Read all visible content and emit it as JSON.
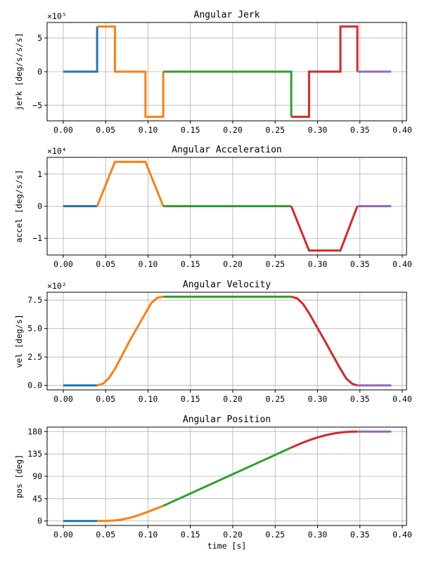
{
  "chart_data": [
    {
      "type": "line",
      "title": "Angular Jerk",
      "ylabel": "jerk [deg/s/s/s]",
      "xlabel": "",
      "offset_text": "×10⁵",
      "xlim": [
        -0.019,
        0.405
      ],
      "ylim": [
        -7.3,
        7.3
      ],
      "xticks": [
        0.0,
        0.05,
        0.1,
        0.15,
        0.2,
        0.25,
        0.3,
        0.35,
        0.4
      ],
      "xticklabels": [
        "0.00",
        "0.05",
        "0.10",
        "0.15",
        "0.20",
        "0.25",
        "0.30",
        "0.35",
        "0.40"
      ],
      "yticks": [
        -5,
        0,
        5
      ],
      "yticklabels": [
        "−5",
        "0",
        "5"
      ],
      "grid": true,
      "series": [
        {
          "color": "#1f77b4",
          "x": [
            0.0,
            0.04,
            0.04
          ],
          "y": [
            0,
            0,
            6.7
          ]
        },
        {
          "color": "#ff7f0e",
          "x": [
            0.04,
            0.061,
            0.061,
            0.097,
            0.097,
            0.118,
            0.118
          ],
          "y": [
            6.7,
            6.7,
            0,
            0,
            -6.7,
            -6.7,
            0
          ]
        },
        {
          "color": "#2ca02c",
          "x": [
            0.118,
            0.269,
            0.269
          ],
          "y": [
            0,
            0,
            -6.7
          ]
        },
        {
          "color": "#d62728",
          "x": [
            0.269,
            0.29,
            0.29,
            0.327,
            0.327,
            0.347,
            0.347
          ],
          "y": [
            -6.7,
            -6.7,
            0,
            0,
            6.7,
            6.7,
            0
          ]
        },
        {
          "color": "#9467bd",
          "x": [
            0.347,
            0.387
          ],
          "y": [
            0,
            0
          ]
        }
      ]
    },
    {
      "type": "line",
      "title": "Angular Acceleration",
      "ylabel": "accel [deg/s/s]",
      "xlabel": "",
      "offset_text": "×10⁴",
      "xlim": [
        -0.019,
        0.405
      ],
      "ylim": [
        -1.52,
        1.52
      ],
      "xticks": [
        0.0,
        0.05,
        0.1,
        0.15,
        0.2,
        0.25,
        0.3,
        0.35,
        0.4
      ],
      "xticklabels": [
        "0.00",
        "0.05",
        "0.10",
        "0.15",
        "0.20",
        "0.25",
        "0.30",
        "0.35",
        "0.40"
      ],
      "yticks": [
        -1,
        0,
        1
      ],
      "yticklabels": [
        "−1",
        "0",
        "1"
      ],
      "grid": true,
      "series": [
        {
          "color": "#1f77b4",
          "x": [
            0.0,
            0.04
          ],
          "y": [
            0,
            0
          ]
        },
        {
          "color": "#ff7f0e",
          "x": [
            0.04,
            0.061,
            0.097,
            0.118
          ],
          "y": [
            0,
            1.38,
            1.38,
            0
          ]
        },
        {
          "color": "#2ca02c",
          "x": [
            0.118,
            0.269
          ],
          "y": [
            0,
            0
          ]
        },
        {
          "color": "#d62728",
          "x": [
            0.269,
            0.29,
            0.327,
            0.347
          ],
          "y": [
            0,
            -1.38,
            -1.38,
            0
          ]
        },
        {
          "color": "#9467bd",
          "x": [
            0.347,
            0.387
          ],
          "y": [
            0,
            0
          ]
        }
      ]
    },
    {
      "type": "line",
      "title": "Angular Velocity",
      "ylabel": "vel [deg/s]",
      "xlabel": "",
      "offset_text": "×10²",
      "xlim": [
        -0.019,
        0.405
      ],
      "ylim": [
        -0.39,
        8.19
      ],
      "xticks": [
        0.0,
        0.05,
        0.1,
        0.15,
        0.2,
        0.25,
        0.3,
        0.35,
        0.4
      ],
      "xticklabels": [
        "0.00",
        "0.05",
        "0.10",
        "0.15",
        "0.20",
        "0.25",
        "0.30",
        "0.35",
        "0.40"
      ],
      "yticks": [
        0,
        2.5,
        5,
        7.5
      ],
      "yticklabels": [
        "0.0",
        "2.5",
        "5.0",
        "7.5"
      ],
      "grid": true,
      "series": [
        {
          "color": "#1f77b4",
          "x": [
            0.0,
            0.04
          ],
          "y": [
            0,
            0
          ]
        },
        {
          "color": "#ff7f0e",
          "x": [
            0.04,
            0.047,
            0.054,
            0.061,
            0.079,
            0.097,
            0.104,
            0.111,
            0.118
          ],
          "y": [
            0,
            0.16,
            0.65,
            1.45,
            4.0,
            6.35,
            7.25,
            7.7,
            7.8
          ]
        },
        {
          "color": "#2ca02c",
          "x": [
            0.118,
            0.269
          ],
          "y": [
            7.8,
            7.8
          ]
        },
        {
          "color": "#d62728",
          "x": [
            0.269,
            0.276,
            0.283,
            0.29,
            0.308,
            0.327,
            0.334,
            0.341,
            0.347
          ],
          "y": [
            7.8,
            7.65,
            7.15,
            6.35,
            4.0,
            1.45,
            0.6,
            0.15,
            0
          ]
        },
        {
          "color": "#9467bd",
          "x": [
            0.347,
            0.387
          ],
          "y": [
            0,
            0
          ]
        }
      ]
    },
    {
      "type": "line",
      "title": "Angular Position",
      "ylabel": "pos [deg]",
      "xlabel": "time [s]",
      "offset_text": "",
      "xlim": [
        -0.019,
        0.405
      ],
      "ylim": [
        -9,
        189
      ],
      "xticks": [
        0.0,
        0.05,
        0.1,
        0.15,
        0.2,
        0.25,
        0.3,
        0.35,
        0.4
      ],
      "xticklabels": [
        "0.00",
        "0.05",
        "0.10",
        "0.15",
        "0.20",
        "0.25",
        "0.30",
        "0.35",
        "0.40"
      ],
      "yticks": [
        0,
        45,
        90,
        135,
        180
      ],
      "yticklabels": [
        "0",
        "45",
        "90",
        "135",
        "180"
      ],
      "grid": true,
      "series": [
        {
          "color": "#1f77b4",
          "x": [
            0.0,
            0.04
          ],
          "y": [
            0,
            0
          ]
        },
        {
          "color": "#ff7f0e",
          "x": [
            0.04,
            0.05,
            0.06,
            0.07,
            0.08,
            0.09,
            0.1,
            0.11,
            0.118
          ],
          "y": [
            0,
            0.2,
            1.0,
            3.2,
            7.0,
            12.3,
            18.5,
            25.2,
            30.5
          ]
        },
        {
          "color": "#2ca02c",
          "x": [
            0.118,
            0.269
          ],
          "y": [
            30.5,
            147.8
          ]
        },
        {
          "color": "#d62728",
          "x": [
            0.269,
            0.28,
            0.29,
            0.3,
            0.31,
            0.32,
            0.33,
            0.34,
            0.347
          ],
          "y": [
            147.8,
            155.9,
            162.5,
            168.2,
            172.9,
            176.4,
            178.8,
            179.8,
            180
          ]
        },
        {
          "color": "#9467bd",
          "x": [
            0.347,
            0.387
          ],
          "y": [
            180,
            180
          ]
        }
      ]
    }
  ]
}
